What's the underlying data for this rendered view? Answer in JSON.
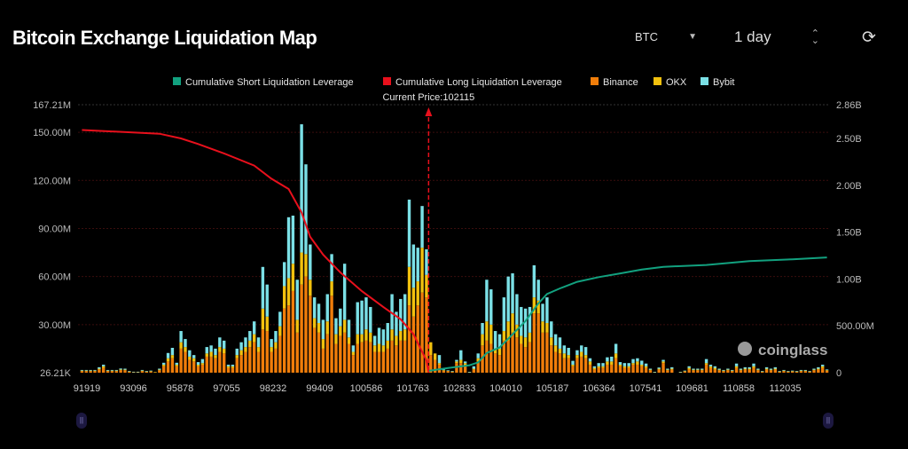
{
  "header": {
    "title": "Bitcoin Exchange Liquidation Map",
    "symbol_select": "BTC",
    "range_select": "1 day",
    "refresh_icon": "refresh-icon"
  },
  "chart_data": {
    "type": "bar",
    "title": "",
    "current_price_label": "Current Price:102115",
    "legend_position": "top",
    "legend": [
      {
        "name": "Cumulative Short Liquidation Leverage",
        "color": "#12a17f"
      },
      {
        "name": "Cumulative Long Liquidation Leverage",
        "color": "#e8101c"
      },
      {
        "name": "Binance",
        "color": "#f07d0a"
      },
      {
        "name": "OKX",
        "color": "#f2c10e"
      },
      {
        "name": "Bybit",
        "color": "#7be0e6"
      }
    ],
    "x_tick_labels": [
      "91919",
      "93096",
      "95878",
      "97055",
      "98232",
      "99409",
      "100586",
      "101763",
      "102833",
      "104010",
      "105187",
      "106364",
      "107541",
      "109681",
      "110858",
      "112035"
    ],
    "y_left": {
      "ticks": [
        "26.21K",
        "30.00M",
        "60.00M",
        "90.00M",
        "120.00M",
        "150.00M",
        "167.21M"
      ],
      "tick_values": [
        0.02621,
        30,
        60,
        90,
        120,
        150,
        167.21
      ],
      "range": [
        0,
        167.21
      ],
      "unit": "M"
    },
    "y_right": {
      "ticks": [
        "0",
        "500.00M",
        "1.00B",
        "1.50B",
        "2.00B",
        "2.50B",
        "2.86B"
      ],
      "tick_values": [
        0,
        0.5,
        1,
        1.5,
        2,
        2.5,
        2.86
      ],
      "range": [
        0,
        2.86
      ],
      "unit": "B"
    },
    "grid": true,
    "current_price_bar_position": 80.5,
    "series": [
      {
        "name": "Binance",
        "values": [
          1,
          1,
          1,
          1,
          2,
          3,
          1,
          1,
          1,
          1.6,
          1.5,
          0.6,
          0.4,
          0.4,
          1,
          0.6,
          0.8,
          0.3,
          1.5,
          4,
          7,
          9,
          4,
          15,
          13,
          8,
          7,
          4,
          5,
          10,
          10,
          9,
          13,
          12,
          3,
          3,
          9,
          11,
          13,
          16,
          19,
          13,
          27,
          26,
          13,
          15,
          23,
          40,
          42,
          51,
          25,
          55,
          60,
          48,
          28,
          25,
          15,
          24,
          48,
          18,
          23,
          25,
          18,
          11,
          18,
          19,
          20,
          19,
          13,
          13,
          13,
          15,
          20,
          17,
          20,
          20,
          42,
          35,
          42,
          50,
          47,
          11,
          8,
          5,
          1.2,
          1,
          0.6,
          6,
          6,
          4,
          0.3,
          2,
          7,
          17,
          20,
          18,
          12,
          11,
          20,
          20,
          25,
          22,
          18,
          16,
          19,
          37,
          37,
          25,
          25,
          17,
          13,
          12,
          9,
          9,
          4,
          9,
          10,
          9,
          5,
          2,
          3,
          3,
          5,
          5,
          9,
          4,
          3,
          3,
          5,
          5,
          4,
          3,
          1.5,
          0.3,
          2,
          6,
          1.5,
          2,
          0,
          0.3,
          0.8,
          2,
          1.5,
          1.5,
          1.5,
          5,
          3,
          2,
          1.5,
          1,
          1.5,
          1,
          3,
          1.5,
          2,
          2,
          3,
          1.5,
          0.6,
          2,
          1.5,
          2,
          0.6,
          1,
          0.6,
          0.8,
          0.6,
          1,
          1,
          0.6,
          1.5,
          2,
          3,
          1.2
        ]
      },
      {
        "name": "OKX",
        "values": [
          0.3,
          0.3,
          0.3,
          0.3,
          0.5,
          1,
          0.3,
          0.3,
          0.3,
          0.4,
          0.4,
          0.2,
          0.1,
          0.1,
          0.3,
          0.2,
          0.2,
          0.1,
          0.4,
          1,
          2,
          2,
          1,
          4,
          3,
          2,
          2,
          1,
          1,
          2,
          3,
          2,
          3,
          3,
          1,
          1,
          2,
          3,
          3,
          4,
          5,
          3,
          13,
          9,
          3,
          4,
          6,
          14,
          17,
          17,
          8,
          20,
          14,
          10,
          6,
          6,
          6,
          8,
          9,
          6,
          6,
          8,
          4,
          2,
          6,
          5,
          7,
          6,
          4,
          5,
          4,
          5,
          7,
          6,
          6,
          7,
          24,
          18,
          15,
          28,
          14,
          8,
          4,
          1,
          0.4,
          0.3,
          0.2,
          1,
          2,
          2,
          0.1,
          0.5,
          2,
          7,
          12,
          12,
          3,
          4,
          6,
          12,
          12,
          8,
          5,
          6,
          6,
          10,
          8,
          7,
          6,
          5,
          4,
          3,
          3,
          2,
          1,
          2,
          3,
          2,
          2,
          1,
          1,
          1,
          2,
          2,
          3,
          1,
          1,
          1,
          1,
          2,
          1,
          1,
          0.4,
          0.1,
          0.5,
          1,
          0.4,
          0.5,
          0,
          0.1,
          0.2,
          1,
          0.4,
          0.4,
          0.4,
          1,
          1,
          1,
          0.4,
          0.3,
          0.4,
          0.3,
          1,
          0.4,
          0.5,
          0.5,
          1,
          0.4,
          0.2,
          0.5,
          0.4,
          0.5,
          0.2,
          0.3,
          0.2,
          0.2,
          0.2,
          0.3,
          0.3,
          0.2,
          0.4,
          0.5,
          1,
          0.4
        ]
      },
      {
        "name": "Bybit",
        "values": [
          0.4,
          0.4,
          0.4,
          0.4,
          0.9,
          1,
          0.4,
          0.4,
          0.4,
          0.6,
          0.6,
          0.2,
          0.1,
          0.1,
          0.4,
          0.2,
          0.3,
          0,
          0.6,
          1.2,
          3.3,
          4.5,
          1.2,
          7,
          5,
          4,
          2,
          1.6,
          2.5,
          4,
          4,
          4,
          6,
          5,
          1,
          1,
          4,
          5,
          6,
          6,
          8,
          6,
          26,
          20,
          5,
          7,
          9,
          15,
          38,
          30,
          25,
          80,
          56,
          22,
          13,
          12,
          12,
          17,
          17,
          10,
          11,
          35,
          11,
          4,
          20,
          21,
          20,
          16,
          6,
          10,
          10,
          11,
          22,
          15,
          20,
          22,
          42,
          27,
          21,
          26,
          16,
          0,
          0,
          5,
          0.4,
          0.2,
          0.2,
          1,
          6,
          1,
          0.1,
          1.5,
          3,
          7,
          26,
          22,
          11,
          9,
          21,
          28,
          25,
          19,
          18,
          18,
          16,
          20,
          13,
          11,
          16,
          10,
          7,
          7,
          5,
          4.5,
          2.4,
          3,
          4,
          5,
          2,
          1,
          2,
          2,
          2.6,
          3,
          6,
          1.6,
          2,
          2,
          2.5,
          2,
          2.5,
          1.7,
          0.6,
          0.1,
          0.7,
          1,
          0.6,
          0.9,
          0,
          0.1,
          0.3,
          1,
          0.6,
          0.6,
          0.6,
          2.5,
          1,
          1,
          0.6,
          0.4,
          0.6,
          0.4,
          1.7,
          0.6,
          0.9,
          0.9,
          1.7,
          0.6,
          0.2,
          0.9,
          0.6,
          0.9,
          0.2,
          0.4,
          0.2,
          0.3,
          0.2,
          0.4,
          0.4,
          0.2,
          0.6,
          0.9,
          1,
          0.4
        ]
      }
    ],
    "lines": [
      {
        "name": "Cumulative Long Liquidation Leverage",
        "axis": "right",
        "points_at_bar": [
          [
            0,
            2.59
          ],
          [
            18,
            2.55
          ],
          [
            23,
            2.5
          ],
          [
            27,
            2.44
          ],
          [
            33,
            2.34
          ],
          [
            40,
            2.21
          ],
          [
            44,
            2.07
          ],
          [
            48,
            1.96
          ],
          [
            51,
            1.71
          ],
          [
            53,
            1.45
          ],
          [
            56,
            1.26
          ],
          [
            60,
            1.07
          ],
          [
            65,
            0.87
          ],
          [
            70,
            0.7
          ],
          [
            74,
            0.57
          ],
          [
            77,
            0.41
          ],
          [
            80,
            0.13
          ],
          [
            80.5,
            0
          ]
        ]
      },
      {
        "name": "Cumulative Short Liquidation Leverage",
        "axis": "right",
        "points_at_bar": [
          [
            80.6,
            0.02
          ],
          [
            85,
            0.05
          ],
          [
            90,
            0.08
          ],
          [
            92,
            0.11
          ],
          [
            94,
            0.21
          ],
          [
            97,
            0.27
          ],
          [
            100,
            0.41
          ],
          [
            103,
            0.55
          ],
          [
            106,
            0.74
          ],
          [
            108,
            0.84
          ],
          [
            111,
            0.9
          ],
          [
            115,
            0.97
          ],
          [
            120,
            1.02
          ],
          [
            125,
            1.06
          ],
          [
            130,
            1.1
          ],
          [
            135,
            1.13
          ],
          [
            145,
            1.15
          ],
          [
            155,
            1.19
          ],
          [
            165,
            1.21
          ],
          [
            173,
            1.23
          ]
        ]
      }
    ],
    "watermark": "coinglass"
  }
}
